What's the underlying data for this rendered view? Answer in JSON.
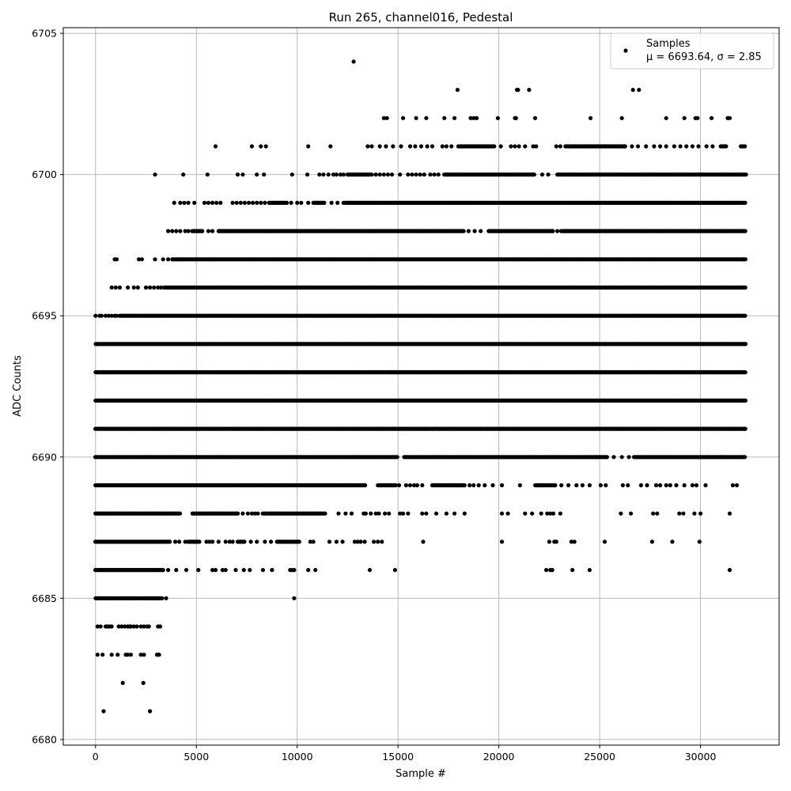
{
  "chart_data": {
    "type": "scatter",
    "title": "Run 265, channel016, Pedestal",
    "xlabel": "Sample #",
    "ylabel": "ADC Counts",
    "xlim": [
      -1600,
      33900
    ],
    "ylim": [
      6679.8,
      6705.2
    ],
    "x_ticks": [
      0,
      5000,
      10000,
      15000,
      20000,
      25000,
      30000
    ],
    "y_ticks": [
      6680,
      6685,
      6690,
      6695,
      6700,
      6705
    ],
    "grid": true,
    "legend": {
      "position": "top-right",
      "label": "Samples",
      "stats": "μ = 6693.64, σ = 2.85"
    },
    "marker_color": "#000000",
    "series": [
      {
        "name": "Samples",
        "x_max": 32260,
        "levels": [
          {
            "y": 6681,
            "x": [
              400,
              2700
            ]
          },
          {
            "y": 6682,
            "x": [
              1350,
              2370
            ]
          },
          {
            "y": 6683,
            "x": [
              100,
              350,
              800,
              1100,
              1500,
              1600,
              1750,
              2250,
              2400,
              3050,
              3100,
              3150
            ]
          },
          {
            "y": 6684,
            "x": [
              100,
              250,
              500,
              600,
              700,
              800,
              1150,
              1300,
              1450,
              1600,
              1700,
              1750,
              1900,
              2050,
              2250,
              2400,
              2550,
              2650,
              3100,
              3200
            ]
          },
          {
            "y": 6685,
            "segments": [
              [
                0,
                3300
              ]
            ],
            "x": [
              3500,
              9850
            ]
          },
          {
            "y": 6686,
            "segments": [
              [
                0,
                3400
              ]
            ],
            "x": [
              3600,
              4000,
              4500,
              5100,
              5800,
              5950,
              6300,
              6450,
              6950,
              7350,
              7650,
              8300,
              8750,
              9650,
              9750,
              9850,
              10550,
              10900,
              13600,
              14850,
              22350,
              22550,
              22650,
              23650,
              24500,
              31450
            ]
          },
          {
            "y": 6687,
            "segments": [
              [
                0,
                3700
              ],
              [
                4600,
                5200
              ],
              [
                7050,
                7400
              ],
              [
                9000,
                10100
              ]
            ],
            "x": [
              3950,
              4150,
              4450,
              5500,
              5650,
              5800,
              6100,
              6450,
              6650,
              6800,
              7700,
              8000,
              8400,
              8700,
              10650,
              10800,
              11600,
              11950,
              12250,
              12850,
              13000,
              13150,
              13350,
              13800,
              14000,
              14200,
              16250,
              20150,
              22500,
              22750,
              22850,
              23600,
              23750,
              25250,
              27600,
              28600,
              29950
            ]
          },
          {
            "y": 6688,
            "segments": [
              [
                0,
                4200
              ],
              [
                4800,
                7100
              ],
              [
                8300,
                11400
              ]
            ],
            "x": [
              7300,
              7550,
              7750,
              7900,
              8050,
              12050,
              12400,
              12700,
              13300,
              13400,
              13650,
              13900,
              14050,
              14350,
              14550,
              15100,
              15250,
              15500,
              16200,
              16400,
              16900,
              17400,
              17800,
              18300,
              20150,
              20450,
              21300,
              21650,
              22100,
              22400,
              22550,
              22700,
              23050,
              26050,
              26550,
              27650,
              27850,
              28950,
              29150,
              29700,
              30000,
              31450
            ]
          },
          {
            "y": 6689,
            "segments": [
              [
                0,
                13400
              ],
              [
                14000,
                14900
              ],
              [
                16700,
                18300
              ],
              [
                21800,
                22800
              ]
            ],
            "x": [
              15050,
              15400,
              15600,
              15800,
              15950,
              16200,
              18550,
              18750,
              19000,
              19300,
              19700,
              20150,
              21050,
              23100,
              23450,
              23850,
              24150,
              24500,
              25050,
              25300,
              26150,
              26400,
              27050,
              27350,
              27800,
              28000,
              28300,
              28500,
              28800,
              29200,
              29600,
              29800,
              30250,
              31600,
              31800
            ]
          },
          {
            "y": 6690,
            "segments": [
              [
                0,
                15000
              ],
              [
                15300,
                25400
              ],
              [
                26700,
                32200
              ]
            ],
            "x": [
              25700,
              26100,
              26450,
              31000
            ]
          },
          {
            "y": 6691,
            "segments": [
              [
                0,
                32260
              ]
            ]
          },
          {
            "y": 6692,
            "segments": [
              [
                0,
                32260
              ]
            ]
          },
          {
            "y": 6693,
            "segments": [
              [
                0,
                32260
              ]
            ]
          },
          {
            "y": 6694,
            "segments": [
              [
                0,
                32260
              ]
            ]
          },
          {
            "y": 6695,
            "segments": [
              [
                1200,
                32260
              ]
            ],
            "x": [
              0,
              200,
              300,
              500,
              650,
              800,
              950,
              1050
            ]
          },
          {
            "y": 6696,
            "segments": [
              [
                3400,
                32260
              ]
            ],
            "x": [
              800,
              1000,
              1200,
              1600,
              1900,
              2100,
              2500,
              2700,
              2900,
              3100,
              3250
            ]
          },
          {
            "y": 6697,
            "segments": [
              [
                3800,
                32260
              ]
            ],
            "x": [
              950,
              1050,
              2150,
              2300,
              2950,
              3350,
              3600
            ]
          },
          {
            "y": 6698,
            "segments": [
              [
                4800,
                5300
              ],
              [
                6100,
                18300
              ],
              [
                19500,
                22700
              ],
              [
                23100,
                32260
              ]
            ],
            "x": [
              3600,
              3800,
              4000,
              4200,
              4450,
              4600,
              5600,
              5800,
              18500,
              18800,
              19100,
              22900
            ]
          },
          {
            "y": 6699,
            "segments": [
              [
                8600,
                9500
              ],
              [
                10800,
                11400
              ],
              [
                12300,
                32260
              ]
            ],
            "x": [
              3900,
              4200,
              4400,
              4600,
              4900,
              5400,
              5600,
              5800,
              6000,
              6200,
              6800,
              7000,
              7200,
              7400,
              7600,
              7800,
              8000,
              8200,
              8400,
              9700,
              10000,
              10200,
              10550,
              11700,
              12000
            ]
          },
          {
            "y": 6700,
            "segments": [
              [
                12500,
                13600
              ],
              [
                17300,
                21800
              ],
              [
                22900,
                32260
              ]
            ],
            "x": [
              2950,
              4350,
              5550,
              7050,
              7300,
              8000,
              8350,
              9750,
              10500,
              11100,
              11300,
              11550,
              11800,
              11950,
              12150,
              12300,
              13700,
              13900,
              14100,
              14300,
              14500,
              14700,
              15100,
              15500,
              15700,
              15900,
              16100,
              16300,
              16600,
              16800,
              17000,
              22150,
              22450
            ]
          },
          {
            "y": 6701,
            "segments": [
              [
                18000,
                19800
              ],
              [
                23300,
                26300
              ],
              [
                31000,
                31300
              ]
            ],
            "x": [
              5950,
              7750,
              8200,
              8450,
              10550,
              11650,
              13500,
              13700,
              14100,
              14400,
              14750,
              15150,
              15600,
              15850,
              16150,
              16450,
              16700,
              17200,
              17400,
              17650,
              20100,
              20600,
              20800,
              21000,
              21300,
              21700,
              21850,
              22850,
              23050,
              26600,
              26900,
              27300,
              27700,
              28000,
              28300,
              28700,
              29000,
              29300,
              29600,
              29900,
              30300,
              30600,
              32000,
              32100,
              32200
            ]
          },
          {
            "y": 6702,
            "x": [
              14300,
              14450,
              15250,
              15900,
              16400,
              17300,
              17800,
              18600,
              18750,
              18900,
              19950,
              20800,
              20850,
              21800,
              24550,
              26100,
              28300,
              29200,
              29750,
              29850,
              30550,
              31350,
              31450
            ]
          },
          {
            "y": 6703,
            "x": [
              17950,
              20900,
              20950,
              21500,
              26650,
              26950
            ]
          },
          {
            "y": 6704,
            "x": [
              12800
            ]
          }
        ]
      }
    ]
  }
}
